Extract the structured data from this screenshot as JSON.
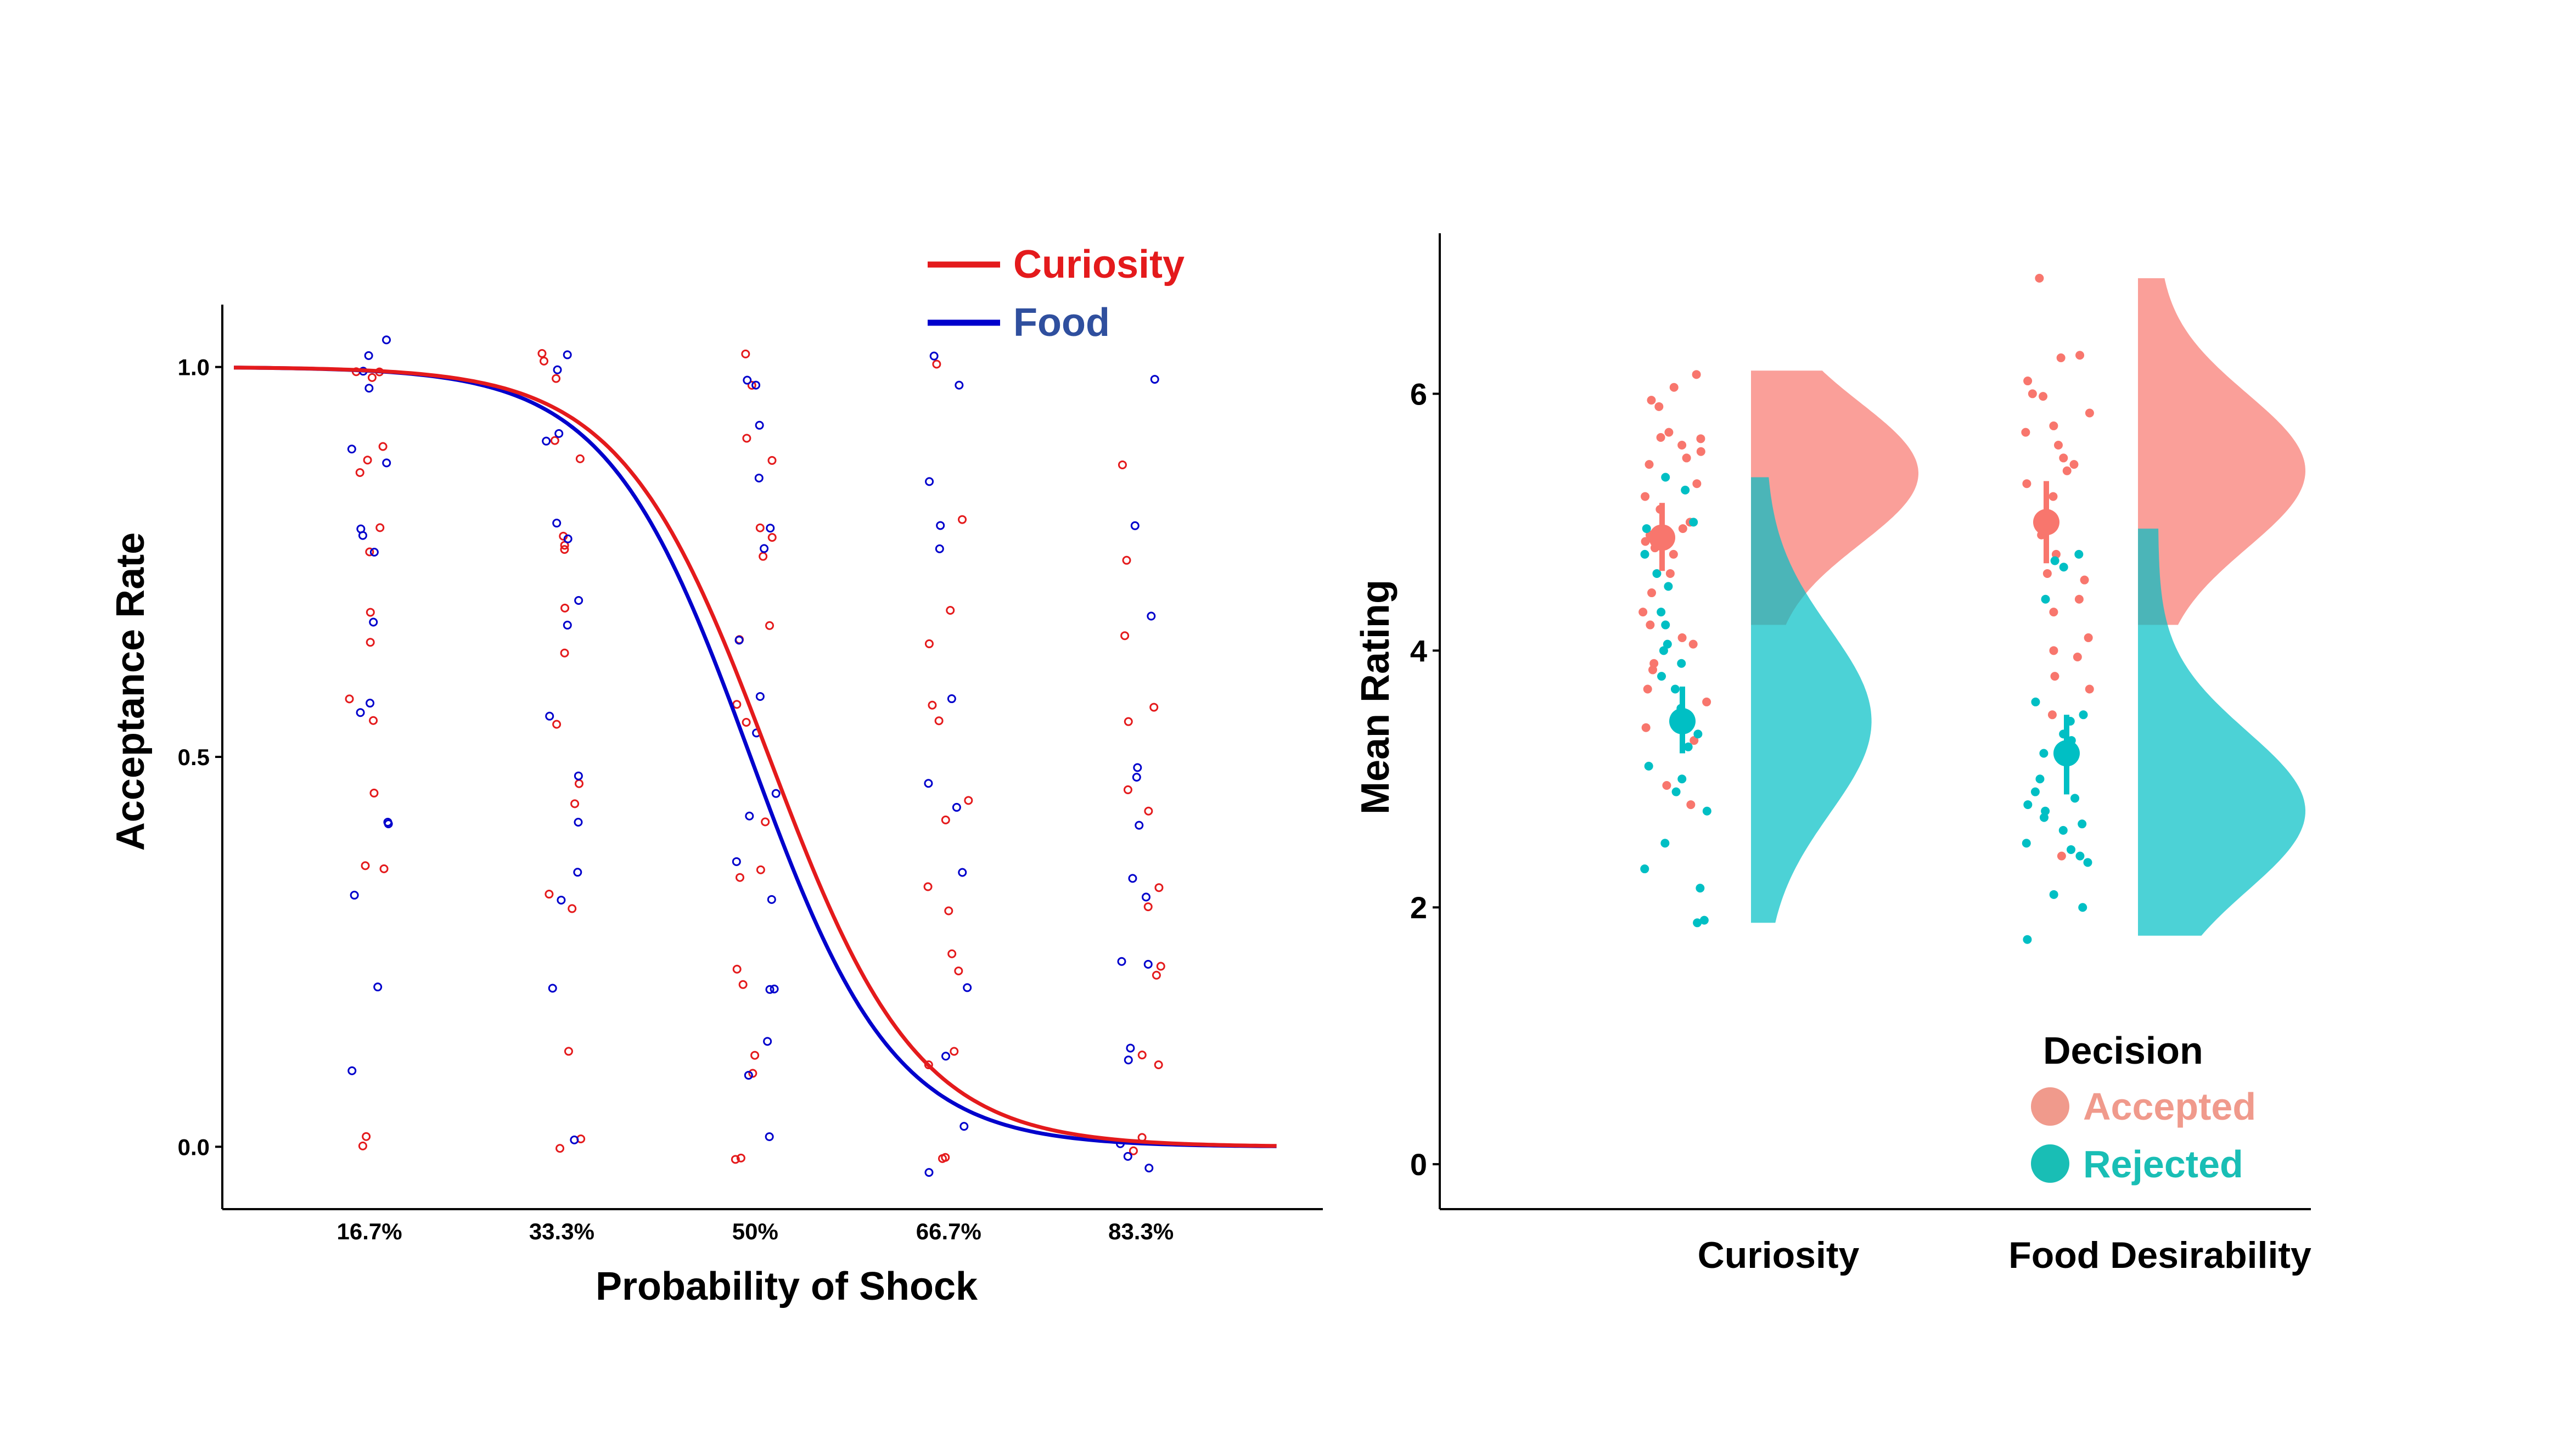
{
  "chart_data": [
    {
      "type": "line",
      "title": "",
      "xlabel": "Probability of Shock",
      "ylabel": "Acceptance Rate",
      "x_categories": [
        "16.7%",
        "33.3%",
        "50%",
        "66.7%",
        "83.3%"
      ],
      "x_values": [
        0.167,
        0.333,
        0.5,
        0.667,
        0.833
      ],
      "xlim": [
        0.04,
        0.99
      ],
      "ylim": [
        -0.08,
        1.08
      ],
      "yticks": [
        "0.0",
        "0.5",
        "1.0"
      ],
      "legend_position": "top-right",
      "series": [
        {
          "name": "Curiosity",
          "color": "#e41a1c",
          "curve": {
            "midpoint": 0.512,
            "slope": 0.064
          },
          "points": {
            "0.167": [
              1.0,
              1.0,
              0.98,
              0.88,
              0.86,
              0.9,
              0.79,
              0.77,
              0.68,
              0.64,
              0.58,
              0.54,
              0.46,
              0.36,
              0.35,
              0.0,
              0.01
            ],
            "0.333": [
              1.02,
              1.0,
              0.99,
              0.91,
              0.89,
              0.79,
              0.77,
              0.76,
              0.69,
              0.64,
              0.54,
              0.47,
              0.44,
              0.33,
              0.31,
              0.12,
              0.01,
              -0.01
            ],
            "0.5": [
              1.01,
              0.98,
              0.91,
              0.88,
              0.8,
              0.78,
              0.76,
              0.65,
              0.67,
              0.57,
              0.54,
              0.42,
              0.35,
              0.34,
              0.22,
              0.21,
              0.12,
              0.1,
              -0.01,
              -0.02
            ],
            "0.667": [
              1.0,
              0.8,
              0.68,
              0.64,
              0.57,
              0.55,
              0.44,
              0.42,
              0.33,
              0.31,
              0.25,
              0.22,
              0.12,
              0.1,
              -0.01,
              -0.02
            ],
            "0.833": [
              0.87,
              0.76,
              0.66,
              0.56,
              0.54,
              0.45,
              0.43,
              0.33,
              0.3,
              0.23,
              0.22,
              0.12,
              0.1,
              0.01,
              -0.01
            ]
          }
        },
        {
          "name": "Food",
          "color": "#0000cc",
          "curve": {
            "midpoint": 0.496,
            "slope": 0.062
          },
          "points": {
            "0.167": [
              1.03,
              1.01,
              0.99,
              0.98,
              0.89,
              0.87,
              0.8,
              0.78,
              0.76,
              0.67,
              0.57,
              0.56,
              0.42,
              0.41,
              0.33,
              0.21,
              0.09
            ],
            "0.333": [
              1.01,
              0.99,
              0.91,
              0.9,
              0.8,
              0.78,
              0.7,
              0.67,
              0.56,
              0.47,
              0.42,
              0.35,
              0.31,
              0.2,
              0.01
            ],
            "0.5": [
              0.99,
              0.98,
              0.92,
              0.85,
              0.8,
              0.77,
              0.65,
              0.57,
              0.53,
              0.46,
              0.42,
              0.36,
              0.32,
              0.21,
              0.2,
              0.13,
              0.09,
              0.02
            ],
            "0.667": [
              1.01,
              0.97,
              0.86,
              0.79,
              0.77,
              0.58,
              0.46,
              0.43,
              0.35,
              0.21,
              0.12,
              0.02,
              -0.03
            ],
            "0.833": [
              0.98,
              0.8,
              0.68,
              0.49,
              0.47,
              0.42,
              0.35,
              0.32,
              0.24,
              0.23,
              0.12,
              0.11,
              0.0,
              -0.02,
              -0.03
            ]
          }
        }
      ]
    },
    {
      "type": "raincloud",
      "title": "",
      "xlabel": "",
      "ylabel": "Mean Rating",
      "categories": [
        "Curiosity",
        "Food Desirability"
      ],
      "ylim": [
        -0.35,
        7.25
      ],
      "yticks": [
        "0",
        "2",
        "4",
        "6"
      ],
      "legend_title": "Decision",
      "legend_position": "bottom-right",
      "groups": [
        {
          "name": "Accepted",
          "color": "#f8766d",
          "legend_color": "#f09a8c",
          "summary": [
            {
              "category": "Curiosity",
              "mean": 4.88,
              "ci": [
                4.62,
                5.15
              ]
            },
            {
              "category": "Food Desirability",
              "mean": 5.0,
              "ci": [
                4.68,
                5.32
              ]
            }
          ],
          "points": {
            "Curiosity": [
              5.9,
              5.7,
              5.66,
              5.65,
              5.6,
              5.55,
              5.5,
              5.45,
              5.3,
              5.2,
              5.1,
              5.0,
              4.95,
              4.9,
              4.85,
              4.8,
              4.75,
              4.6,
              4.45,
              4.3,
              4.2,
              4.1,
              4.05,
              3.9,
              3.85,
              3.7,
              3.6,
              3.4,
              3.3,
              2.95,
              2.8,
              6.15,
              6.05,
              5.95
            ],
            "Food Desirability": [
              6.9,
              6.3,
              6.28,
              6.1,
              6.0,
              5.98,
              5.85,
              5.75,
              5.7,
              5.6,
              5.5,
              5.45,
              5.4,
              5.3,
              5.2,
              5.05,
              4.9,
              4.75,
              4.6,
              4.55,
              4.4,
              4.3,
              4.1,
              4.0,
              3.95,
              3.8,
              3.7,
              3.5,
              2.4
            ]
          },
          "density": {
            "Curiosity": {
              "range": [
                4.2,
                6.18
              ],
              "mode": 5.38,
              "spread": 0.55,
              "width": 1.0
            },
            "Food Desirability": {
              "range": [
                4.2,
                6.9
              ],
              "mode": 5.4,
              "spread": 0.6,
              "width": 1.0
            }
          }
        },
        {
          "name": "Rejected",
          "color": "#00bfc4",
          "legend_color": "#19beb5",
          "summary": [
            {
              "category": "Curiosity",
              "mean": 3.45,
              "ci": [
                3.2,
                3.72
              ]
            },
            {
              "category": "Food Desirability",
              "mean": 3.2,
              "ci": [
                2.88,
                3.5
              ]
            }
          ],
          "points": {
            "Curiosity": [
              5.35,
              5.25,
              4.95,
              4.75,
              4.6,
              4.5,
              4.3,
              4.2,
              4.05,
              3.9,
              3.8,
              3.7,
              3.55,
              3.5,
              3.35,
              3.25,
              3.1,
              3.0,
              2.9,
              2.75,
              2.5,
              2.3,
              2.15,
              1.9,
              1.88,
              5.0,
              4.0
            ],
            "Food Desirability": [
              4.75,
              4.7,
              4.65,
              4.4,
              3.6,
              3.5,
              3.45,
              3.3,
              3.2,
              3.0,
              2.9,
              2.85,
              2.8,
              2.75,
              2.7,
              2.6,
              2.5,
              2.45,
              2.4,
              2.35,
              2.1,
              2.0,
              1.75,
              3.35,
              2.65
            ]
          },
          "density": {
            "Curiosity": {
              "range": [
                1.88,
                5.35
              ],
              "mode": 3.45,
              "spread": 0.72,
              "width": 0.72
            },
            "Food Desirability": {
              "range": [
                1.78,
                4.95
              ],
              "mode": 2.75,
              "spread": 0.62,
              "width": 1.0
            }
          }
        }
      ]
    }
  ]
}
